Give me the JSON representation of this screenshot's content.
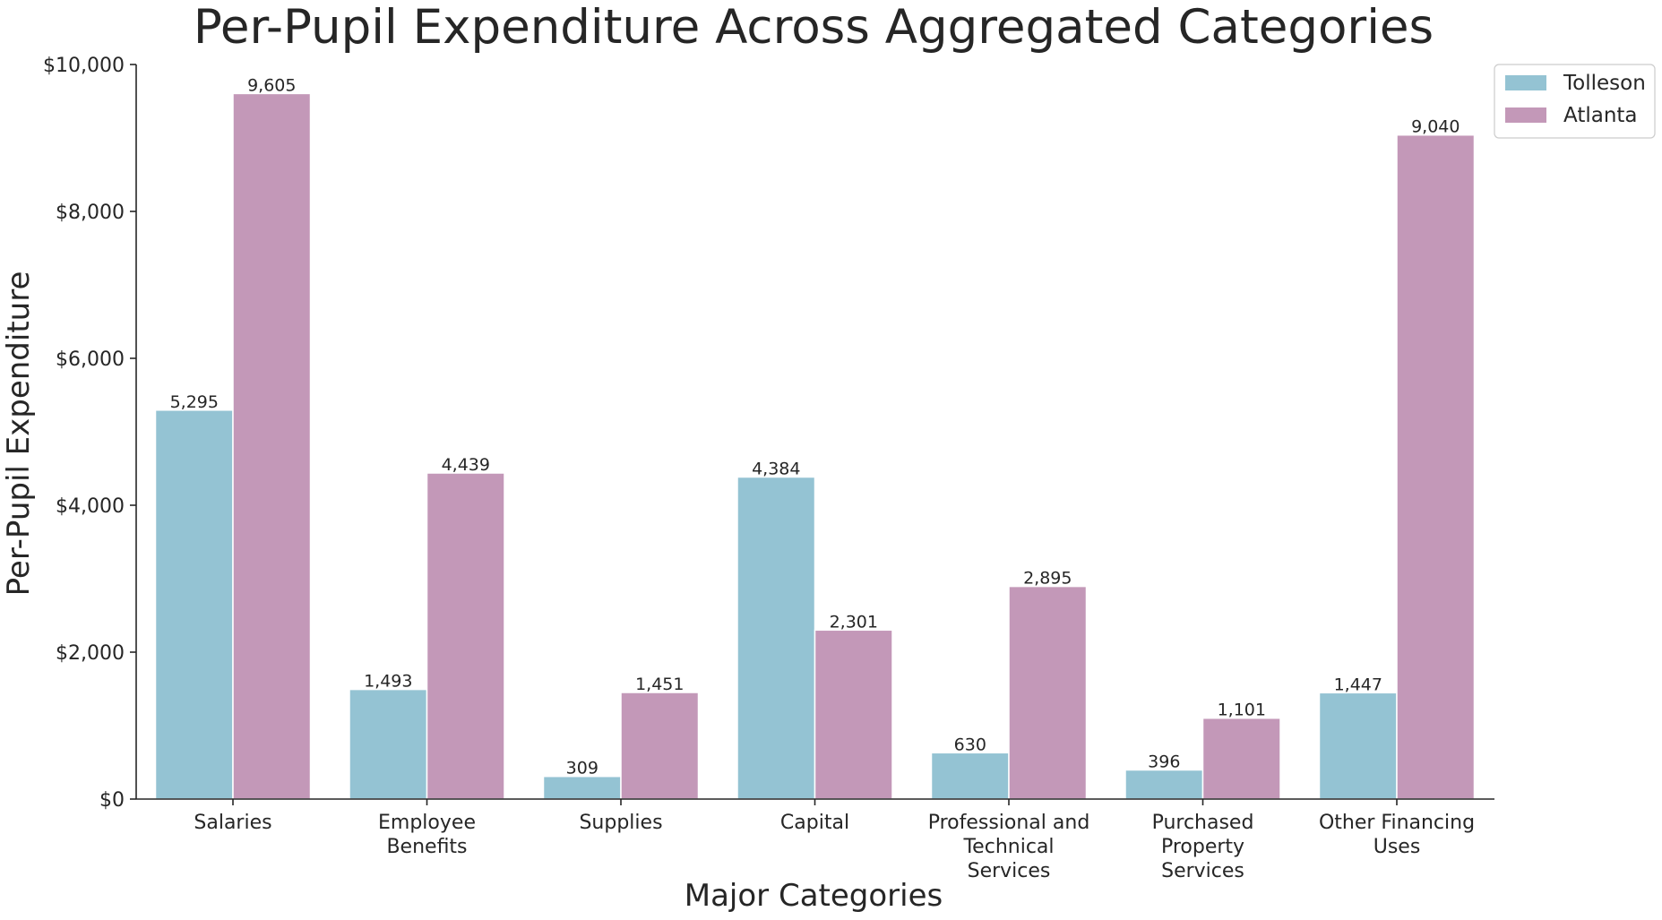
{
  "chart_data": {
    "type": "bar",
    "title": "Per-Pupil Expenditure Across Aggregated Categories",
    "xlabel": "Major Categories",
    "ylabel": "Per-Pupil Expenditure",
    "categories": [
      "Salaries",
      "Employee Benefits",
      "Supplies",
      "Capital",
      "Professional and Technical Services",
      "Purchased Property Services",
      "Other Financing Uses"
    ],
    "category_label_lines": [
      [
        "Salaries"
      ],
      [
        "Employee",
        "Benefits"
      ],
      [
        "Supplies"
      ],
      [
        "Capital"
      ],
      [
        "Professional and",
        "Technical",
        "Services"
      ],
      [
        "Purchased",
        "Property",
        "Services"
      ],
      [
        "Other Financing",
        "Uses"
      ]
    ],
    "series": [
      {
        "name": "Tolleson",
        "color": "#94c3d3",
        "values": [
          5295,
          1493,
          309,
          4384,
          630,
          396,
          1447
        ],
        "labels": [
          "5,295",
          "1,493",
          "309",
          "4,384",
          "630",
          "396",
          "1,447"
        ]
      },
      {
        "name": "Atlanta",
        "color": "#c398b8",
        "values": [
          9605,
          4439,
          1451,
          2301,
          2895,
          1101,
          9040
        ],
        "labels": [
          "9,605",
          "4,439",
          "1,451",
          "2,301",
          "2,895",
          "1,101",
          "9,040"
        ]
      }
    ],
    "ylim": [
      0,
      10000
    ],
    "yticks": [
      0,
      2000,
      4000,
      6000,
      8000,
      10000
    ],
    "ytick_labels": [
      "$0",
      "$2,000",
      "$4,000",
      "$6,000",
      "$8,000",
      "$10,000"
    ],
    "grid": false,
    "legend_position": "top-right, outside plot area"
  }
}
